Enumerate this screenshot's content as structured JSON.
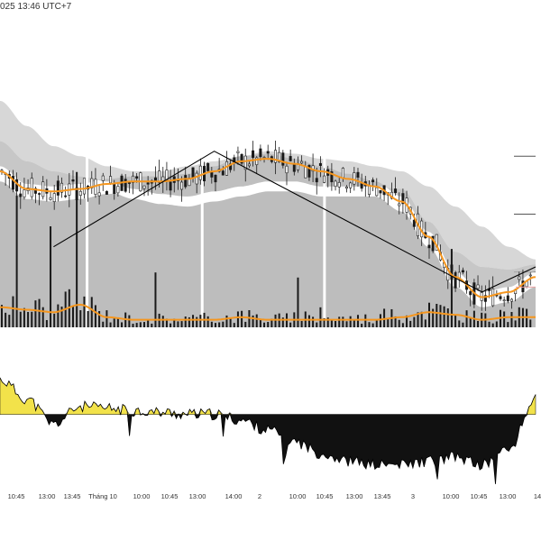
{
  "header": {
    "timestamp": "025 13:46 UTC+7"
  },
  "colors": {
    "band_outer": "#d7d7d7",
    "band_inner": "#b9b9b9",
    "body_shade": "#b2b2b2",
    "ma_line": "#f5961e",
    "candle": "#1a1a1a",
    "zigzag": "#000000",
    "osc_pos": "#f2e24a",
    "osc_neg": "#111111",
    "marker": "#e8a0a0"
  },
  "chart_data": [
    {
      "type": "line",
      "panel": "price",
      "title": "",
      "x_ticks": [
        "10:45",
        "13:00",
        "13:45",
        "Tháng 10",
        "10:00",
        "10:45",
        "13:00",
        "14:00",
        "2",
        "10:00",
        "10:45",
        "13:00",
        "13:45",
        "3",
        "10:00",
        "10:45",
        "13:00",
        "14"
      ],
      "x": [
        0,
        3,
        6,
        9,
        12,
        15,
        18,
        21,
        24,
        27,
        30,
        33,
        36,
        39,
        42,
        45,
        48,
        51,
        54,
        57,
        60
      ],
      "xlim": [
        0,
        60
      ],
      "ylim": [
        0,
        100
      ],
      "y_gridlines": [
        22,
        45,
        68
      ],
      "series": [
        {
          "role": "ma",
          "values": [
            62,
            55,
            54,
            55,
            57,
            58,
            58,
            59,
            62,
            66,
            67,
            65,
            62,
            59,
            56,
            50,
            36,
            20,
            12,
            14,
            20
          ]
        },
        {
          "role": "envelope_upper",
          "values": [
            90,
            80,
            72,
            68,
            64,
            62,
            62,
            64,
            66,
            68,
            70,
            69,
            67,
            66,
            64,
            62,
            56,
            48,
            40,
            32,
            27
          ]
        },
        {
          "role": "envelope_lower",
          "values": [
            74,
            66,
            62,
            60,
            58,
            55,
            53,
            52,
            54,
            56,
            58,
            58,
            56,
            56,
            56,
            55,
            42,
            30,
            24,
            23,
            25
          ]
        },
        {
          "role": "zigzag",
          "points": [
            [
              6,
              32
            ],
            [
              24,
              70
            ],
            [
              54,
              14
            ],
            [
              60,
              24
            ]
          ]
        }
      ],
      "volume": [
        {
          "role": "volume_ma",
          "values": [
            8,
            7,
            6,
            9,
            4,
            3,
            3,
            3,
            3,
            4,
            3,
            3,
            3,
            3,
            3,
            4,
            6,
            5,
            3,
            4,
            4
          ]
        }
      ]
    },
    {
      "type": "area",
      "panel": "oscillator",
      "x": [
        0,
        3,
        6,
        9,
        12,
        15,
        18,
        21,
        24,
        27,
        30,
        33,
        36,
        39,
        42,
        45,
        48,
        51,
        54,
        57,
        60
      ],
      "xlim": [
        0,
        60
      ],
      "values": [
        18,
        8,
        -5,
        4,
        3,
        2,
        1,
        0,
        0,
        -3,
        -8,
        -14,
        -20,
        -24,
        -26,
        -26,
        -24,
        -22,
        -26,
        -18,
        8
      ],
      "ylim": [
        -35,
        30
      ]
    }
  ]
}
